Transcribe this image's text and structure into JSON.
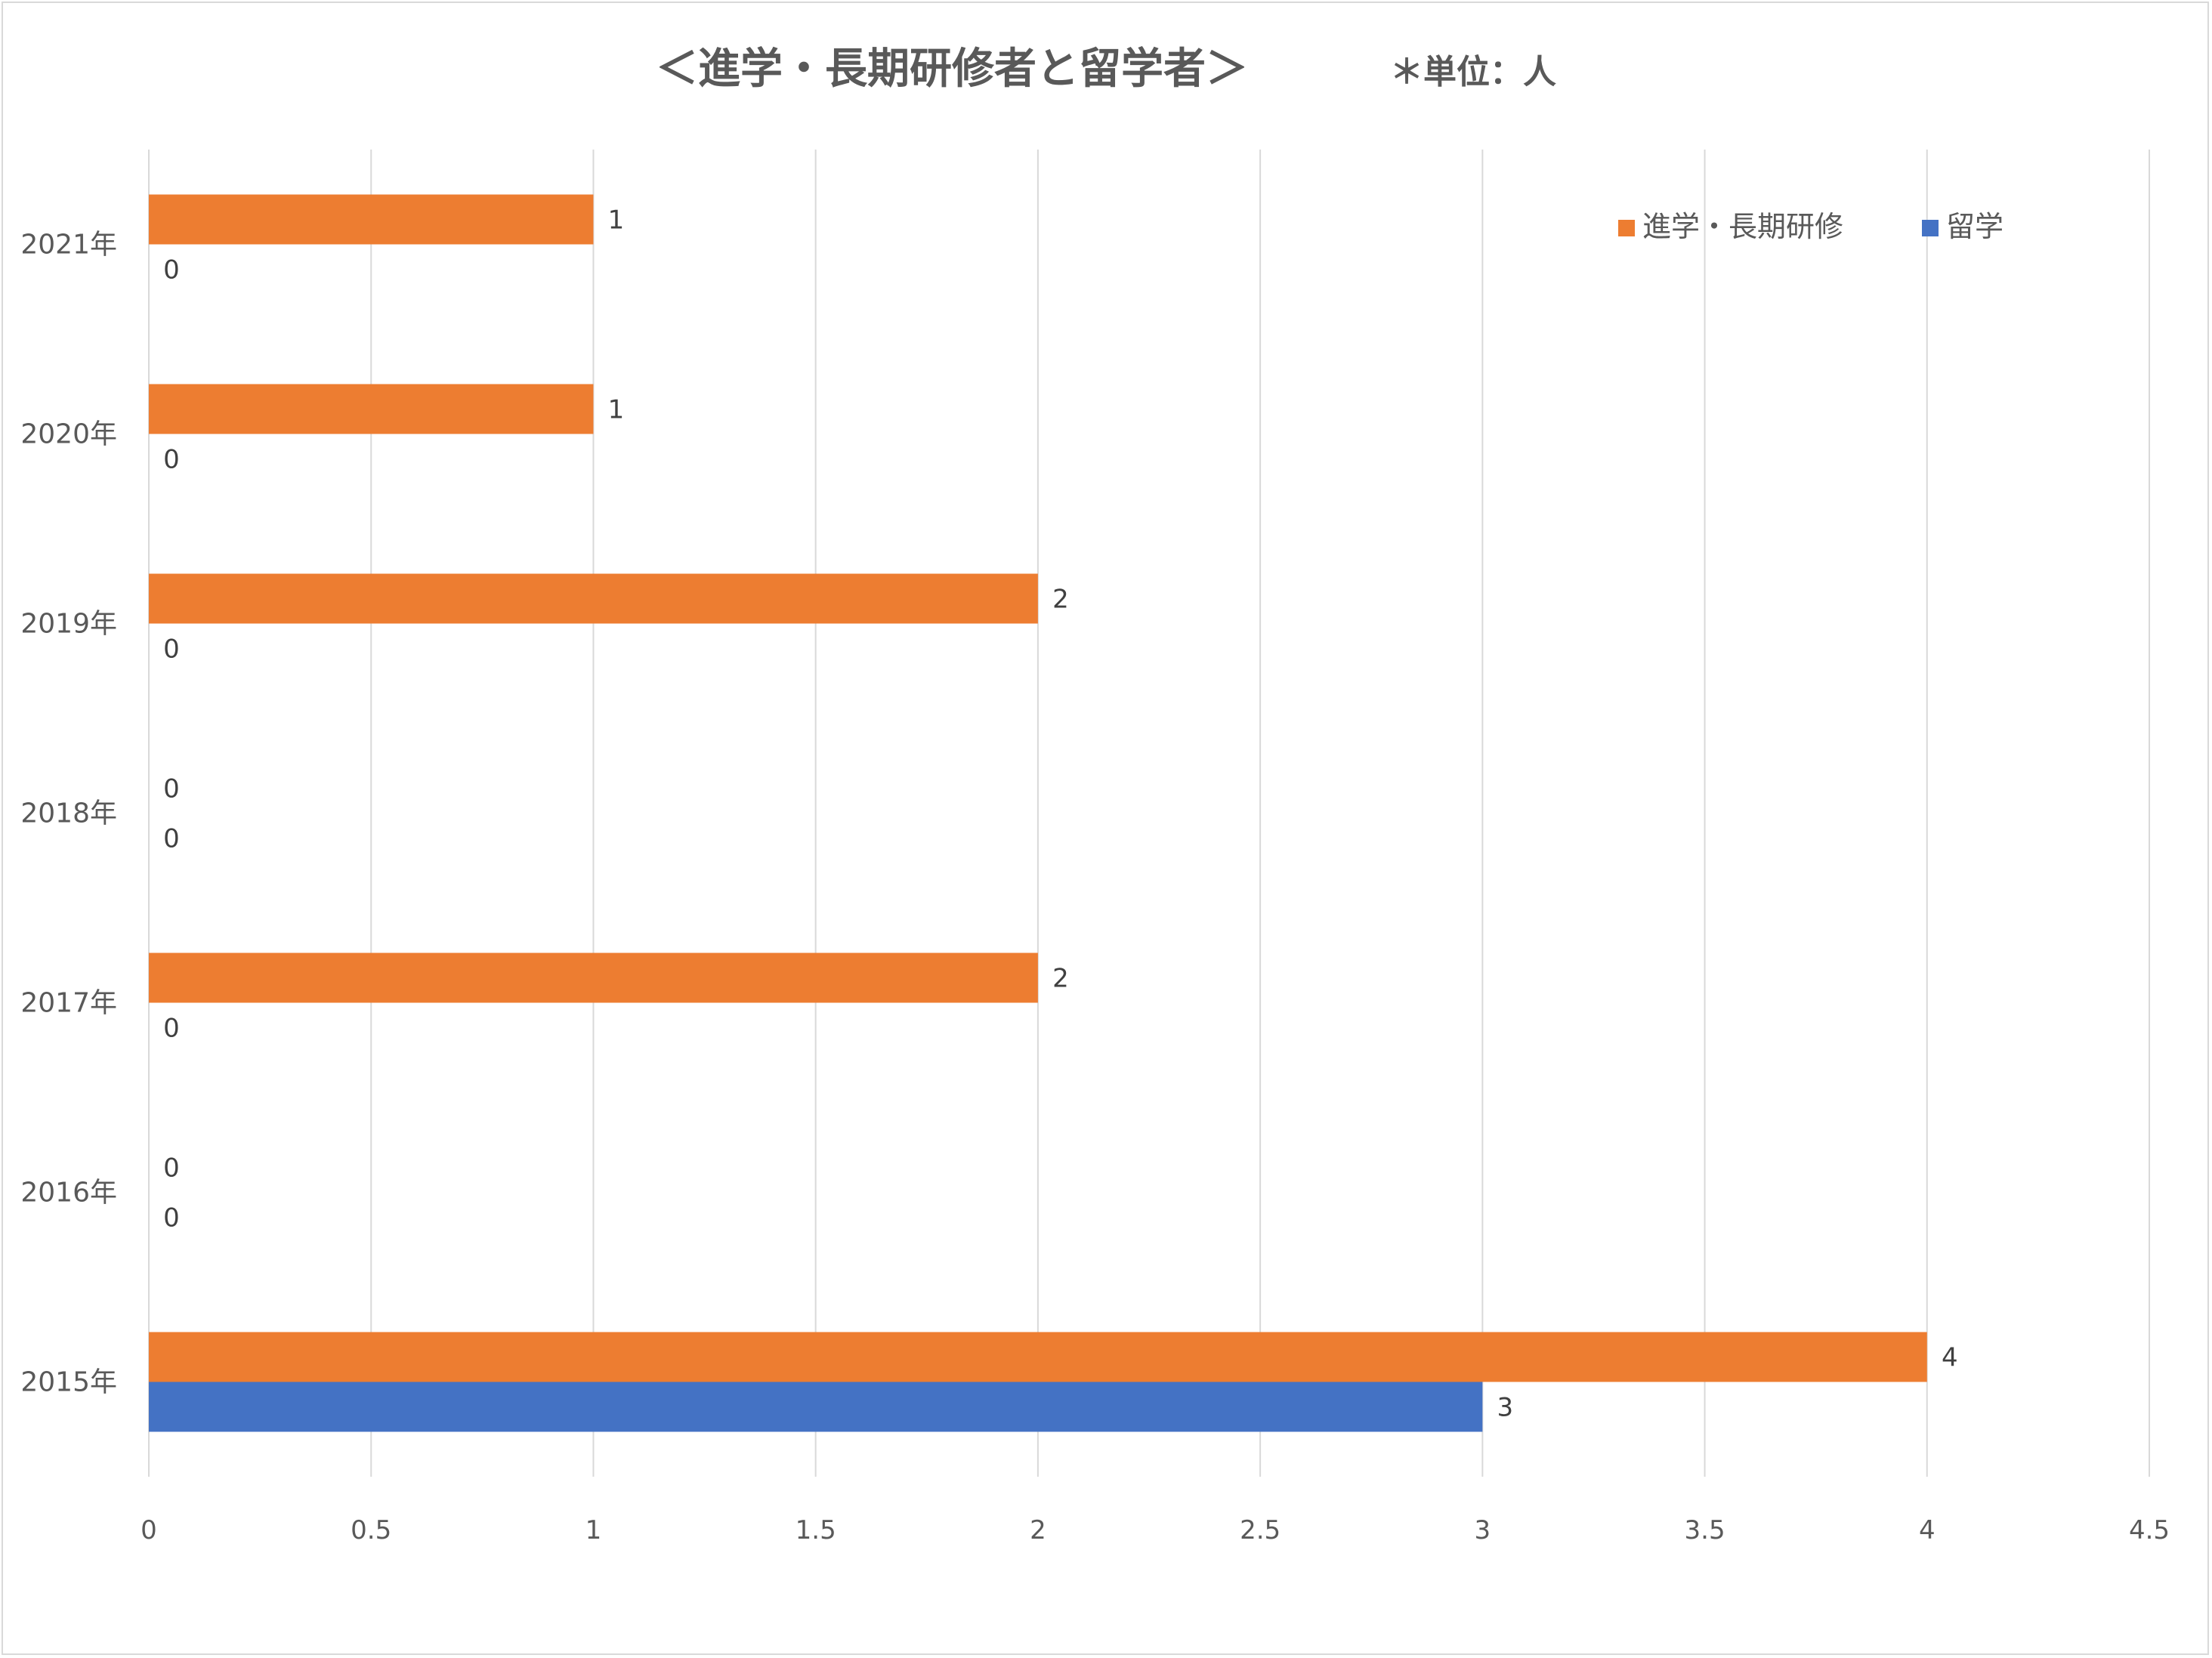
{
  "chart_data": {
    "type": "bar",
    "orientation": "horizontal",
    "title": "＜進学・長期研修者と留学者＞",
    "subtitle": "＊単位：人",
    "xlabel": "",
    "ylabel": "",
    "categories": [
      "2021年",
      "2020年",
      "2019年",
      "2018年",
      "2017年",
      "2016年",
      "2015年"
    ],
    "series": [
      {
        "name": "進学・長期研修",
        "color": "#ED7D31",
        "values": [
          1,
          1,
          2,
          0,
          2,
          0,
          4
        ]
      },
      {
        "name": "留学",
        "color": "#4472C4",
        "values": [
          0,
          0,
          0,
          0,
          0,
          0,
          3
        ]
      }
    ],
    "xlim": [
      0,
      4.5
    ],
    "xticks": [
      "0",
      "0.5",
      "1",
      "1.5",
      "2",
      "2.5",
      "3",
      "3.5",
      "4",
      "4.5"
    ],
    "grid": true,
    "legend_position": "top-right",
    "data_labels": true
  }
}
